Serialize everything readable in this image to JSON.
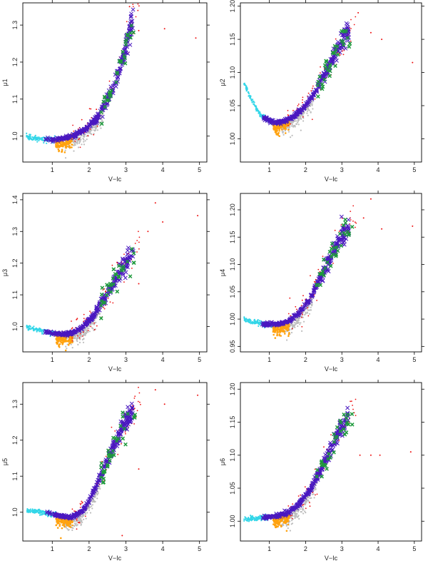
{
  "colors": {
    "cyan": "#33d6e8",
    "orange": "#ffa20f",
    "gray": "#bdbdbd",
    "red": "#ee1111",
    "purple": "#4a18c0",
    "green": "#1e9a3c"
  },
  "chart_data": [
    {
      "type": "scatter",
      "id": "p1",
      "xlabel": "V−Ic",
      "ylabel": "μ1",
      "xlim": [
        0.2,
        5.2
      ],
      "ylim": [
        0.93,
        1.36
      ],
      "x_ticks": [
        1,
        2,
        3,
        4,
        5
      ],
      "x_tick_labels": [
        "1",
        "2",
        "3",
        "4",
        "5"
      ],
      "y_ticks": [
        1.0,
        1.1,
        1.2,
        1.3
      ],
      "y_tick_labels": [
        "1.0",
        "1.1",
        "1.2",
        "1.3"
      ],
      "curve": [
        [
          0.3,
          0.998
        ],
        [
          0.7,
          0.991
        ],
        [
          1.0,
          0.99
        ],
        [
          1.3,
          0.994
        ],
        [
          1.6,
          1.002
        ],
        [
          1.9,
          1.018
        ],
        [
          2.2,
          1.048
        ],
        [
          2.5,
          1.095
        ],
        [
          2.7,
          1.14
        ],
        [
          2.85,
          1.19
        ],
        [
          3.0,
          1.245
        ],
        [
          3.15,
          1.3
        ]
      ],
      "cyan_xrange": [
        0.3,
        1.2
      ],
      "orange_xrange": [
        1.1,
        1.55
      ],
      "gray_xrange": [
        1.35,
        2.4
      ],
      "red_xrange": [
        1.5,
        3.4
      ],
      "purple_xrange": [
        0.8,
        3.2
      ],
      "green_xrange": [
        2.3,
        3.3
      ],
      "outliers": [
        [
          3.35,
          1.285
        ],
        [
          4.05,
          1.29
        ],
        [
          4.9,
          1.265
        ],
        [
          3.1,
          1.35
        ]
      ]
    },
    {
      "type": "scatter",
      "id": "p2",
      "xlabel": "V−Ic",
      "ylabel": "μ2",
      "xlim": [
        0.2,
        5.2
      ],
      "ylim": [
        0.965,
        1.205
      ],
      "x_ticks": [
        1,
        2,
        3,
        4,
        5
      ],
      "x_tick_labels": [
        "1",
        "2",
        "3",
        "4",
        "5"
      ],
      "y_ticks": [
        1.0,
        1.05,
        1.1,
        1.15,
        1.2
      ],
      "y_tick_labels": [
        "1.00",
        "1.05",
        "1.10",
        "1.15",
        "1.20"
      ],
      "curve": [
        [
          0.3,
          1.085
        ],
        [
          0.5,
          1.06
        ],
        [
          0.7,
          1.04
        ],
        [
          0.9,
          1.03
        ],
        [
          1.1,
          1.025
        ],
        [
          1.3,
          1.025
        ],
        [
          1.5,
          1.028
        ],
        [
          1.7,
          1.035
        ],
        [
          2.0,
          1.05
        ],
        [
          2.3,
          1.075
        ],
        [
          2.6,
          1.105
        ],
        [
          2.9,
          1.135
        ],
        [
          3.15,
          1.16
        ]
      ],
      "cyan_xrange": [
        0.3,
        1.2
      ],
      "orange_xrange": [
        1.1,
        1.55
      ],
      "gray_xrange": [
        1.35,
        2.2
      ],
      "red_xrange": [
        1.5,
        3.4
      ],
      "purple_xrange": [
        0.8,
        3.2
      ],
      "green_xrange": [
        2.3,
        3.3
      ],
      "outliers": [
        [
          3.8,
          1.16
        ],
        [
          4.1,
          1.15
        ],
        [
          4.95,
          1.115
        ],
        [
          3.45,
          1.19
        ]
      ]
    },
    {
      "type": "scatter",
      "id": "p3",
      "xlabel": "V−Ic",
      "ylabel": "μ3",
      "xlim": [
        0.2,
        5.2
      ],
      "ylim": [
        0.92,
        1.42
      ],
      "x_ticks": [
        1,
        2,
        3,
        4,
        5
      ],
      "x_tick_labels": [
        "1",
        "2",
        "3",
        "4",
        "5"
      ],
      "y_ticks": [
        1.0,
        1.1,
        1.2,
        1.3,
        1.4
      ],
      "y_tick_labels": [
        "1.0",
        "1.1",
        "1.2",
        "1.3",
        "1.4"
      ],
      "curve": [
        [
          0.3,
          1.0
        ],
        [
          0.6,
          0.99
        ],
        [
          0.9,
          0.981
        ],
        [
          1.2,
          0.976
        ],
        [
          1.5,
          0.978
        ],
        [
          1.8,
          0.995
        ],
        [
          2.1,
          1.03
        ],
        [
          2.4,
          1.085
        ],
        [
          2.7,
          1.145
        ],
        [
          2.95,
          1.195
        ],
        [
          3.2,
          1.235
        ]
      ],
      "cyan_xrange": [
        0.3,
        1.2
      ],
      "orange_xrange": [
        1.1,
        1.55
      ],
      "gray_xrange": [
        1.35,
        2.3
      ],
      "red_xrange": [
        1.5,
        3.4
      ],
      "purple_xrange": [
        0.8,
        3.2
      ],
      "green_xrange": [
        2.3,
        3.3
      ],
      "outliers": [
        [
          3.8,
          1.39
        ],
        [
          4.0,
          1.33
        ],
        [
          4.95,
          1.35
        ],
        [
          3.35,
          1.135
        ],
        [
          2.15,
          0.99
        ],
        [
          3.6,
          1.3
        ]
      ]
    },
    {
      "type": "scatter",
      "id": "p4",
      "xlabel": "V−Ic",
      "ylabel": "μ4",
      "xlim": [
        0.2,
        5.2
      ],
      "ylim": [
        0.94,
        1.23
      ],
      "x_ticks": [
        1,
        2,
        3,
        4,
        5
      ],
      "x_tick_labels": [
        "1",
        "2",
        "3",
        "4",
        "5"
      ],
      "y_ticks": [
        0.95,
        1.0,
        1.05,
        1.1,
        1.15,
        1.2
      ],
      "y_tick_labels": [
        "0.95",
        "1.00",
        "1.05",
        "1.10",
        "1.15",
        "1.20"
      ],
      "curve": [
        [
          0.3,
          1.0
        ],
        [
          0.6,
          0.994
        ],
        [
          0.9,
          0.99
        ],
        [
          1.2,
          0.99
        ],
        [
          1.5,
          0.995
        ],
        [
          1.8,
          1.01
        ],
        [
          2.1,
          1.035
        ],
        [
          2.4,
          1.075
        ],
        [
          2.7,
          1.115
        ],
        [
          3.0,
          1.15
        ],
        [
          3.2,
          1.17
        ]
      ],
      "cyan_xrange": [
        0.3,
        1.2
      ],
      "orange_xrange": [
        1.1,
        1.55
      ],
      "gray_xrange": [
        1.35,
        2.2
      ],
      "red_xrange": [
        1.5,
        3.4
      ],
      "purple_xrange": [
        0.8,
        3.2
      ],
      "green_xrange": [
        2.3,
        3.3
      ],
      "outliers": [
        [
          3.8,
          1.22
        ],
        [
          4.1,
          1.165
        ],
        [
          4.95,
          1.17
        ],
        [
          3.6,
          1.185
        ]
      ]
    },
    {
      "type": "scatter",
      "id": "p5",
      "xlabel": "V−Ic",
      "ylabel": "μ5",
      "xlim": [
        0.2,
        5.2
      ],
      "ylim": [
        0.92,
        1.36
      ],
      "x_ticks": [
        1,
        2,
        3,
        4,
        5
      ],
      "x_tick_labels": [
        "1",
        "2",
        "3",
        "4",
        "5"
      ],
      "y_ticks": [
        1.0,
        1.1,
        1.2,
        1.3
      ],
      "y_tick_labels": [
        "1.0",
        "1.1",
        "1.2",
        "1.3"
      ],
      "curve": [
        [
          0.3,
          1.005
        ],
        [
          0.6,
          1.002
        ],
        [
          0.9,
          0.997
        ],
        [
          1.2,
          0.99
        ],
        [
          1.5,
          0.985
        ],
        [
          1.8,
          1.0
        ],
        [
          2.1,
          1.05
        ],
        [
          2.4,
          1.12
        ],
        [
          2.7,
          1.19
        ],
        [
          2.95,
          1.24
        ],
        [
          3.2,
          1.28
        ]
      ],
      "cyan_xrange": [
        0.3,
        1.2
      ],
      "orange_xrange": [
        1.1,
        1.55
      ],
      "gray_xrange": [
        1.35,
        2.3
      ],
      "red_xrange": [
        1.5,
        3.4
      ],
      "purple_xrange": [
        0.8,
        3.2
      ],
      "green_xrange": [
        2.3,
        3.3
      ],
      "outliers": [
        [
          3.8,
          1.34
        ],
        [
          4.05,
          1.3
        ],
        [
          4.95,
          1.325
        ],
        [
          3.35,
          1.12
        ],
        [
          2.9,
          0.935
        ]
      ]
    },
    {
      "type": "scatter",
      "id": "p6",
      "xlabel": "V−Ic",
      "ylabel": "μ6",
      "xlim": [
        0.2,
        5.2
      ],
      "ylim": [
        0.97,
        1.21
      ],
      "x_ticks": [
        1,
        2,
        3,
        4,
        5
      ],
      "x_tick_labels": [
        "1",
        "2",
        "3",
        "4",
        "5"
      ],
      "y_ticks": [
        1.0,
        1.05,
        1.1,
        1.15,
        1.2
      ],
      "y_tick_labels": [
        "1.00",
        "1.05",
        "1.10",
        "1.15",
        "1.20"
      ],
      "curve": [
        [
          0.3,
          1.003
        ],
        [
          0.6,
          1.004
        ],
        [
          0.9,
          1.006
        ],
        [
          1.2,
          1.008
        ],
        [
          1.5,
          1.012
        ],
        [
          1.8,
          1.025
        ],
        [
          2.1,
          1.045
        ],
        [
          2.4,
          1.075
        ],
        [
          2.7,
          1.11
        ],
        [
          2.95,
          1.14
        ],
        [
          3.2,
          1.16
        ]
      ],
      "cyan_xrange": [
        0.3,
        1.2
      ],
      "orange_xrange": [
        1.1,
        1.55
      ],
      "gray_xrange": [
        1.35,
        2.3
      ],
      "red_xrange": [
        1.5,
        3.4
      ],
      "purple_xrange": [
        0.8,
        3.2
      ],
      "green_xrange": [
        2.3,
        3.3
      ],
      "outliers": [
        [
          3.8,
          1.1
        ],
        [
          4.05,
          1.1
        ],
        [
          4.9,
          1.105
        ],
        [
          3.5,
          1.1
        ]
      ]
    }
  ]
}
